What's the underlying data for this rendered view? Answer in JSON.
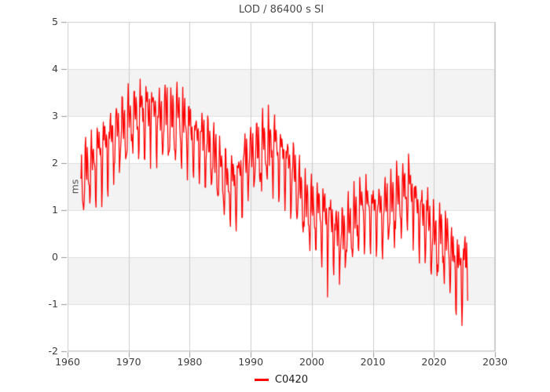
{
  "chart_data": {
    "type": "line",
    "title": "LOD / 86400 s SI",
    "xlabel": "",
    "ylabel": "ms",
    "xlim": [
      1960,
      2030
    ],
    "ylim": [
      -2,
      5
    ],
    "xticks": [
      1960,
      1970,
      1980,
      1990,
      2000,
      2010,
      2020,
      2030
    ],
    "yticks": [
      -2,
      -1,
      0,
      1,
      2,
      3,
      4,
      5
    ],
    "grid": true,
    "band_intervals": [
      [
        -1,
        0
      ],
      [
        1,
        2
      ],
      [
        3,
        4
      ]
    ],
    "legend_position": "bottom-center",
    "legend": [
      {
        "label": "C0420",
        "color": "#ff0000"
      }
    ],
    "series": {
      "name": "C0420",
      "color": "#ff0000",
      "x_start": 1962.2,
      "x_end": 2025.55,
      "sample_step_years": 0.085,
      "seed": 1972,
      "trend_points": [
        [
          1962.2,
          1.45
        ],
        [
          1963,
          1.75
        ],
        [
          1964,
          1.95
        ],
        [
          1965,
          2.15
        ],
        [
          1966,
          2.3
        ],
        [
          1967,
          2.45
        ],
        [
          1968,
          2.55
        ],
        [
          1969,
          2.7
        ],
        [
          1970,
          2.8
        ],
        [
          1971,
          2.9
        ],
        [
          1972,
          3.05
        ],
        [
          1973,
          2.95
        ],
        [
          1974,
          3.0
        ],
        [
          1975,
          2.9
        ],
        [
          1976,
          2.95
        ],
        [
          1977,
          2.8
        ],
        [
          1978,
          2.9
        ],
        [
          1979,
          2.75
        ],
        [
          1980,
          2.65
        ],
        [
          1981,
          2.5
        ],
        [
          1982,
          2.45
        ],
        [
          1983,
          2.3
        ],
        [
          1984,
          2.1
        ],
        [
          1985,
          1.85
        ],
        [
          1986,
          1.6
        ],
        [
          1987,
          1.5
        ],
        [
          1988,
          1.65
        ],
        [
          1989,
          1.95
        ],
        [
          1990,
          2.15
        ],
        [
          1991,
          2.2
        ],
        [
          1992,
          2.3
        ],
        [
          1993,
          2.35
        ],
        [
          1994,
          2.3
        ],
        [
          1995,
          2.15
        ],
        [
          1996,
          1.95
        ],
        [
          1997,
          1.7
        ],
        [
          1998,
          1.35
        ],
        [
          1999,
          1.05
        ],
        [
          2000,
          0.95
        ],
        [
          2001,
          0.9
        ],
        [
          2002,
          0.85
        ],
        [
          2003,
          0.65
        ],
        [
          2004,
          0.45
        ],
        [
          2005,
          0.4
        ],
        [
          2006,
          0.55
        ],
        [
          2007,
          0.75
        ],
        [
          2008,
          0.95
        ],
        [
          2009,
          1.05
        ],
        [
          2010,
          0.95
        ],
        [
          2011,
          0.9
        ],
        [
          2012,
          0.95
        ],
        [
          2013,
          1.1
        ],
        [
          2014,
          1.2
        ],
        [
          2015,
          1.3
        ],
        [
          2016,
          1.45
        ],
        [
          2017,
          1.05
        ],
        [
          2018,
          0.85
        ],
        [
          2019,
          0.7
        ],
        [
          2020,
          0.4
        ],
        [
          2021,
          0.35
        ],
        [
          2022,
          0.3
        ],
        [
          2023,
          -0.05
        ],
        [
          2024,
          -0.3
        ],
        [
          2025,
          -0.25
        ],
        [
          2025.55,
          -0.2
        ]
      ],
      "seasonal": {
        "annual_amp": 0.48,
        "annual_phase": 0.07,
        "semiannual_amp": 0.32,
        "semiannual_phase": 0.37,
        "fortnightly_amp": 0.3,
        "fortnightly_period": 0.0375,
        "noise_amp": 0.15,
        "spike_prob": 0.015,
        "spike_amp": 0.45
      }
    },
    "colors": {
      "series": "#ff0000",
      "band": "#f3f3f3",
      "grid_vertical": "#cccccc",
      "grid_horizontal": "#e0e0e0",
      "border": "#cccccc",
      "tick": "#999999",
      "title_text": "#474747",
      "tick_text": "#3d3d3d",
      "axis_label_text": "#555555",
      "legend_text": "#1c1c1c",
      "background": "#ffffff"
    }
  }
}
